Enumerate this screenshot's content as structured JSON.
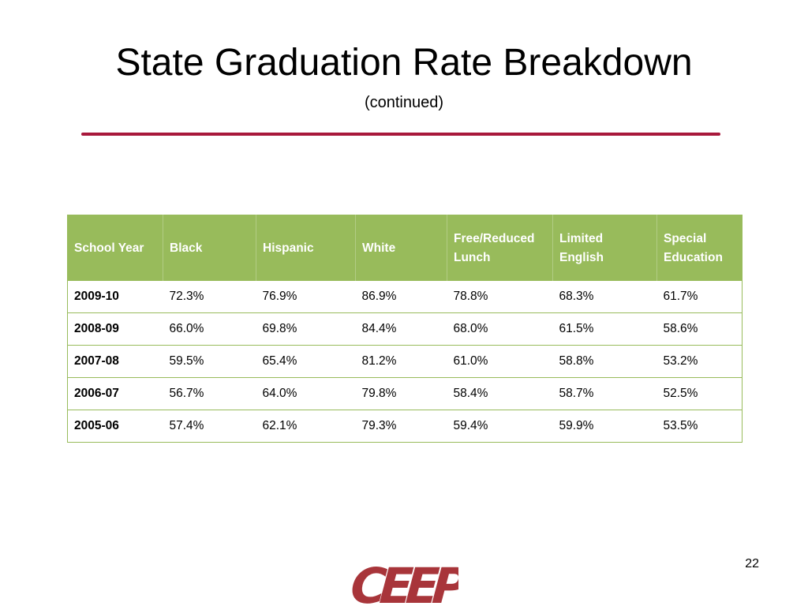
{
  "slide": {
    "title": "State Graduation Rate Breakdown",
    "subtitle": "(continued)",
    "page_number": "22",
    "accent_color": "#a8183b",
    "table_header_color": "#98bb5b",
    "logo_text": "CEEP",
    "logo_color": "#a8353a"
  },
  "table": {
    "headers": [
      "School Year",
      "Black",
      "Hispanic",
      "White",
      "Free/Reduced Lunch",
      "Limited English",
      "Special Education"
    ],
    "rows": [
      [
        "2009-10",
        "72.3%",
        "76.9%",
        "86.9%",
        "78.8%",
        "68.3%",
        "61.7%"
      ],
      [
        "2008-09",
        "66.0%",
        "69.8%",
        "84.4%",
        "68.0%",
        "61.5%",
        "58.6%"
      ],
      [
        "2007-08",
        "59.5%",
        "65.4%",
        "81.2%",
        "61.0%",
        "58.8%",
        "53.2%"
      ],
      [
        "2006-07",
        "56.7%",
        "64.0%",
        "79.8%",
        "58.4%",
        "58.7%",
        "52.5%"
      ],
      [
        "2005-06",
        "57.4%",
        "62.1%",
        "79.3%",
        "59.4%",
        "59.9%",
        "53.5%"
      ]
    ]
  }
}
